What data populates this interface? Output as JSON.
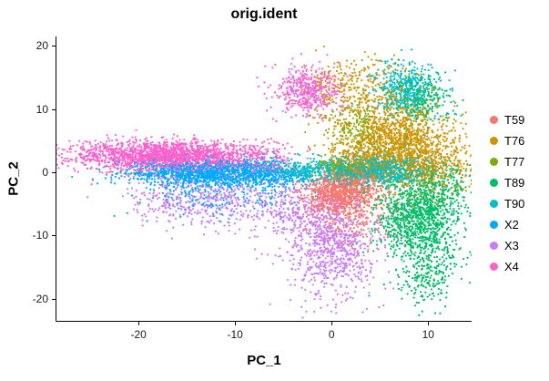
{
  "chart_data": {
    "type": "scatter",
    "title": "orig.ident",
    "xlabel": "PC_1",
    "ylabel": "PC_2",
    "xlim": [
      -28.5,
      14.5
    ],
    "ylim": [
      -23.5,
      21.5
    ],
    "x_ticks": [
      -20,
      -10,
      0,
      10
    ],
    "y_ticks": [
      20,
      10,
      0,
      -10,
      -20
    ],
    "x_tick_labels": [
      "-20",
      "-10",
      "0",
      "10"
    ],
    "y_tick_labels": [
      "20",
      "10",
      "0",
      "-10",
      "-20"
    ],
    "grid": false,
    "background": "#FFFFFF",
    "axis_color": "#000000",
    "legend_position": "right",
    "point_radius": 1.1,
    "series": [
      {
        "name": "T59",
        "color": "#F8766D",
        "clusters": [
          {
            "cx": 0.5,
            "cy": -3.5,
            "sx": 1.8,
            "sy": 1.8,
            "n": 700
          },
          {
            "cx": 2.5,
            "cy": -1.5,
            "sx": 1.5,
            "sy": 1.5,
            "n": 250
          },
          {
            "cx": 2.0,
            "cy": -7.0,
            "sx": 2.5,
            "sy": 2.5,
            "n": 250
          }
        ]
      },
      {
        "name": "T76",
        "color": "#CD9600",
        "clusters": [
          {
            "cx": 6.5,
            "cy": 5.0,
            "sx": 2.8,
            "sy": 3.5,
            "n": 1400
          },
          {
            "cx": 10.5,
            "cy": 1.0,
            "sx": 2.0,
            "sy": 2.5,
            "n": 450
          },
          {
            "cx": 2.0,
            "cy": 13.0,
            "sx": 2.5,
            "sy": 2.5,
            "n": 300
          },
          {
            "cx": 3.0,
            "cy": 1.5,
            "sx": 2.0,
            "sy": 1.5,
            "n": 250
          }
        ]
      },
      {
        "name": "T77",
        "color": "#7CAE00",
        "clusters": [
          {
            "cx": 2.5,
            "cy": 7.0,
            "sx": 1.5,
            "sy": 2.0,
            "n": 140
          },
          {
            "cx": 1.2,
            "cy": 0.8,
            "sx": 1.2,
            "sy": 0.9,
            "n": 110
          }
        ]
      },
      {
        "name": "T89",
        "color": "#00BE67",
        "clusters": [
          {
            "cx": 9.0,
            "cy": -7.0,
            "sx": 2.0,
            "sy": 3.0,
            "n": 1100
          },
          {
            "cx": 10.0,
            "cy": -15.5,
            "sx": 1.6,
            "sy": 3.0,
            "n": 280
          },
          {
            "cx": 9.0,
            "cy": 11.5,
            "sx": 1.6,
            "sy": 2.0,
            "n": 220
          },
          {
            "cx": 11.5,
            "cy": -2.0,
            "sx": 1.5,
            "sy": 2.0,
            "n": 150
          }
        ]
      },
      {
        "name": "T90",
        "color": "#00BFC4",
        "clusters": [
          {
            "cx": 2.5,
            "cy": 0.3,
            "sx": 2.8,
            "sy": 1.1,
            "n": 650
          },
          {
            "cx": 6.5,
            "cy": 0.5,
            "sx": 2.0,
            "sy": 1.4,
            "n": 350
          },
          {
            "cx": 8.0,
            "cy": 13.0,
            "sx": 1.7,
            "sy": 2.1,
            "n": 450
          },
          {
            "cx": -3.5,
            "cy": 0.2,
            "sx": 1.5,
            "sy": 0.8,
            "n": 150
          }
        ]
      },
      {
        "name": "X2",
        "color": "#00A9FF",
        "clusters": [
          {
            "cx": -13.0,
            "cy": 0.0,
            "sx": 4.3,
            "sy": 1.1,
            "n": 1300
          },
          {
            "cx": -6.5,
            "cy": -0.5,
            "sx": 1.8,
            "sy": 1.2,
            "n": 250
          },
          {
            "cx": -12.0,
            "cy": -3.5,
            "sx": 4.0,
            "sy": 1.8,
            "n": 180
          }
        ]
      },
      {
        "name": "X3",
        "color": "#C77CFF",
        "clusters": [
          {
            "cx": -13.0,
            "cy": -4.5,
            "sx": 4.2,
            "sy": 2.0,
            "n": 450
          },
          {
            "cx": 0.0,
            "cy": -12.0,
            "sx": 2.4,
            "sy": 4.0,
            "n": 750
          },
          {
            "cx": -3.5,
            "cy": -6.0,
            "sx": 2.5,
            "sy": 2.2,
            "n": 250
          },
          {
            "cx": -2.0,
            "cy": 12.5,
            "sx": 1.8,
            "sy": 1.8,
            "n": 90
          }
        ]
      },
      {
        "name": "X4",
        "color": "#FF61CC",
        "clusters": [
          {
            "cx": -17.0,
            "cy": 2.6,
            "sx": 4.8,
            "sy": 1.2,
            "n": 1900
          },
          {
            "cx": -2.5,
            "cy": 13.0,
            "sx": 1.7,
            "sy": 1.9,
            "n": 380
          },
          {
            "cx": -8.0,
            "cy": 2.0,
            "sx": 2.0,
            "sy": 1.5,
            "n": 150
          }
        ]
      }
    ]
  }
}
